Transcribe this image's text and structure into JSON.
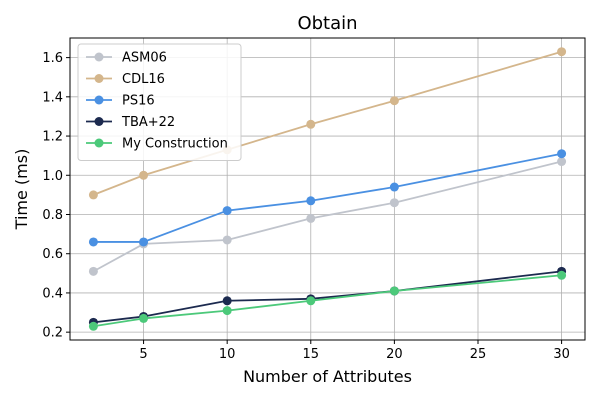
{
  "chart_data": {
    "type": "line",
    "title": "Obtain",
    "xlabel": "Number of Attributes",
    "ylabel": "Time (ms)",
    "x": [
      2,
      5,
      10,
      15,
      20,
      30
    ],
    "xticks": [
      5,
      10,
      15,
      20,
      25,
      30
    ],
    "yticks": [
      0.2,
      0.4,
      0.6,
      0.8,
      1.0,
      1.2,
      1.4,
      1.6
    ],
    "xlim": [
      0.6,
      31.4
    ],
    "ylim": [
      0.16,
      1.7
    ],
    "grid": true,
    "legend_position": "top-left",
    "series": [
      {
        "name": "ASM06",
        "color": "#c0c4cc",
        "values": [
          0.51,
          0.65,
          0.67,
          0.78,
          0.86,
          1.07
        ]
      },
      {
        "name": "CDL16",
        "color": "#d4b68c",
        "values": [
          0.9,
          1.0,
          1.13,
          1.26,
          1.38,
          1.63
        ]
      },
      {
        "name": "PS16",
        "color": "#4a90e2",
        "values": [
          0.66,
          0.66,
          0.82,
          0.87,
          0.94,
          1.11
        ]
      },
      {
        "name": "TBA+22",
        "color": "#1c2a4f",
        "values": [
          0.25,
          0.28,
          0.36,
          0.37,
          0.41,
          0.51
        ]
      },
      {
        "name": "My Construction",
        "color": "#4cc97a",
        "values": [
          0.23,
          0.27,
          0.31,
          0.36,
          0.41,
          0.49
        ]
      }
    ]
  }
}
